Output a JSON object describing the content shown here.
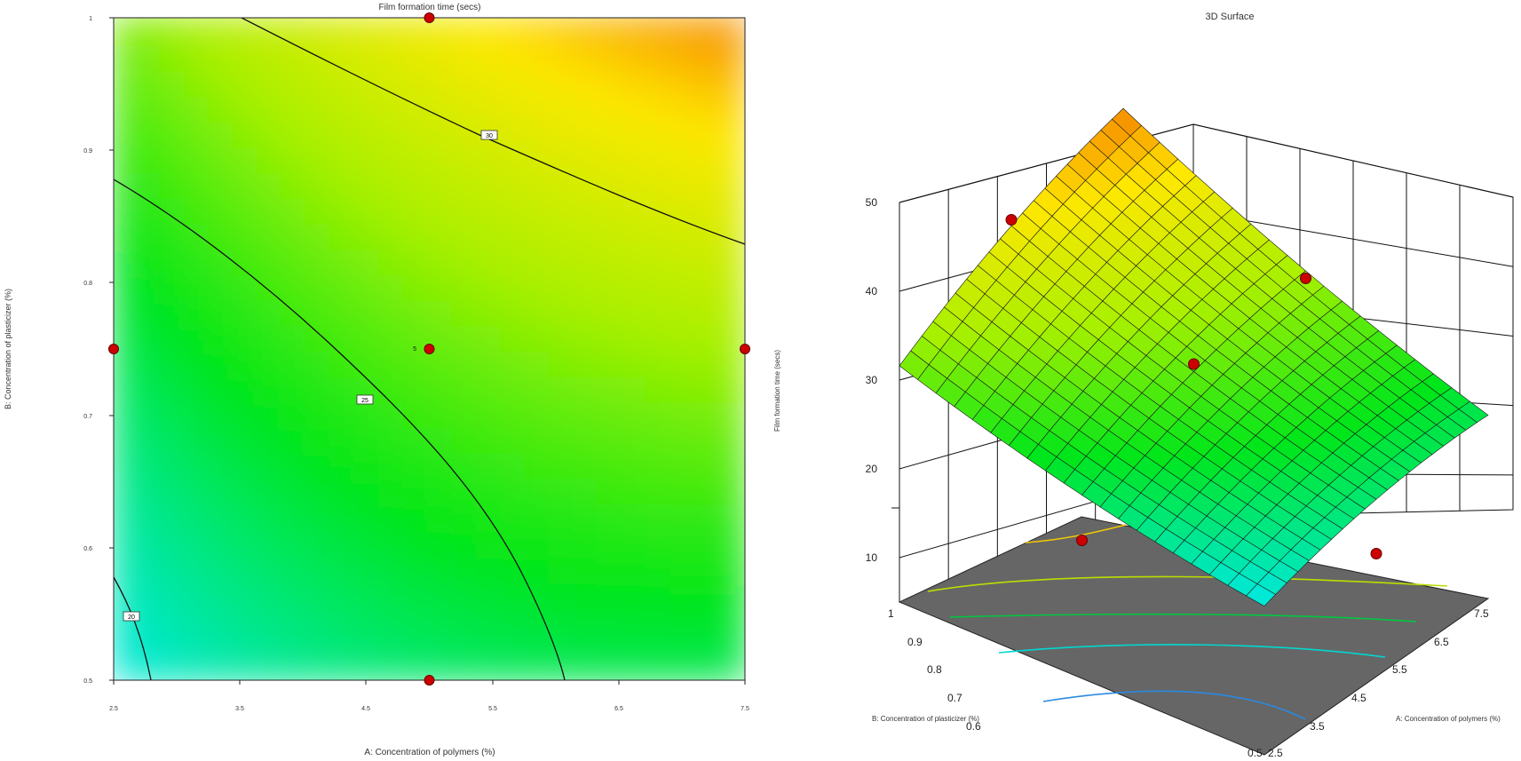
{
  "chart_data": [
    {
      "type": "heatmap",
      "subtype": "contour",
      "title": "Film formation time (secs)",
      "xlabel": "A: Concentration of polymers (%)",
      "ylabel": "B: Concentration of plasticizer (%)",
      "xlim": [
        2.5,
        7.5
      ],
      "ylim": [
        0.5,
        1.0
      ],
      "x_ticks": [
        "2.5",
        "3.5",
        "4.5",
        "5.5",
        "6.5",
        "7.5"
      ],
      "y_ticks": [
        "0.5",
        "0.6",
        "0.7",
        "0.8",
        "0.9",
        "1"
      ],
      "color_scale": [
        "#0a1cd8",
        "#00e8f0",
        "#00e61a",
        "#a8f000",
        "#ffe800",
        "#f04a00"
      ],
      "contour_labels": [
        "30",
        "25",
        "20"
      ],
      "design_points": [
        {
          "x": 2.5,
          "y": 0.75
        },
        {
          "x": 5.0,
          "y": 0.75
        },
        {
          "x": 7.5,
          "y": 0.75
        },
        {
          "x": 5.0,
          "y": 1.0
        },
        {
          "x": 5.0,
          "y": 0.5
        }
      ],
      "center_label": "5"
    },
    {
      "type": "surface",
      "title": "3D Surface",
      "zlabel": "Film formation time (secs)",
      "xlabel": "A: Concentration of polymers (%)",
      "ylabel": "B: Concentration of plasticizer (%)",
      "x_ticks": [
        "2.5",
        "3.5",
        "4.5",
        "5.5",
        "6.5",
        "7.5"
      ],
      "y_ticks": [
        "0.5",
        "0.6",
        "0.7",
        "0.8",
        "0.9",
        "1"
      ],
      "z_ticks": [
        "10",
        "20",
        "30",
        "40",
        "50"
      ],
      "zlim": [
        5,
        50
      ],
      "grid": true,
      "design_points": [
        {
          "x": 5.0,
          "y": 0.75,
          "z": 31
        },
        {
          "x": 7.5,
          "y": 0.75,
          "z": 32
        },
        {
          "x": 5.0,
          "y": 1.0,
          "z": 40
        },
        {
          "x": 5.0,
          "y": 0.5,
          "z": 16
        },
        {
          "x": 2.5,
          "y": 0.75,
          "z": 18
        }
      ]
    }
  ]
}
